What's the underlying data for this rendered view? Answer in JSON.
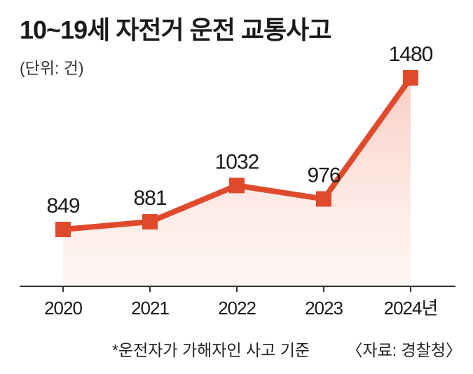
{
  "header": {
    "title": "10~19세 자전거 운전 교통사고",
    "unit": "(단위: 건)"
  },
  "footer": {
    "note": "*운전자가 가해자인 사고 기준",
    "source": "〈자료: 경찰청〉"
  },
  "colors": {
    "line": "#e04a2c",
    "fill_top": "#f9c9bd",
    "fill_bottom": "#fdeee9",
    "axis": "#333333"
  },
  "chart_data": {
    "type": "area",
    "title": "10~19세 자전거 운전 교통사고",
    "ylabel": "(단위: 건)",
    "xlabel": "",
    "categories": [
      "2020",
      "2021",
      "2022",
      "2023",
      "2024년"
    ],
    "series": [
      {
        "name": "",
        "values": [
          849,
          881,
          1032,
          976,
          1480
        ]
      }
    ],
    "ylim": [
      600,
      1500
    ],
    "grid": false,
    "legend": "none"
  }
}
